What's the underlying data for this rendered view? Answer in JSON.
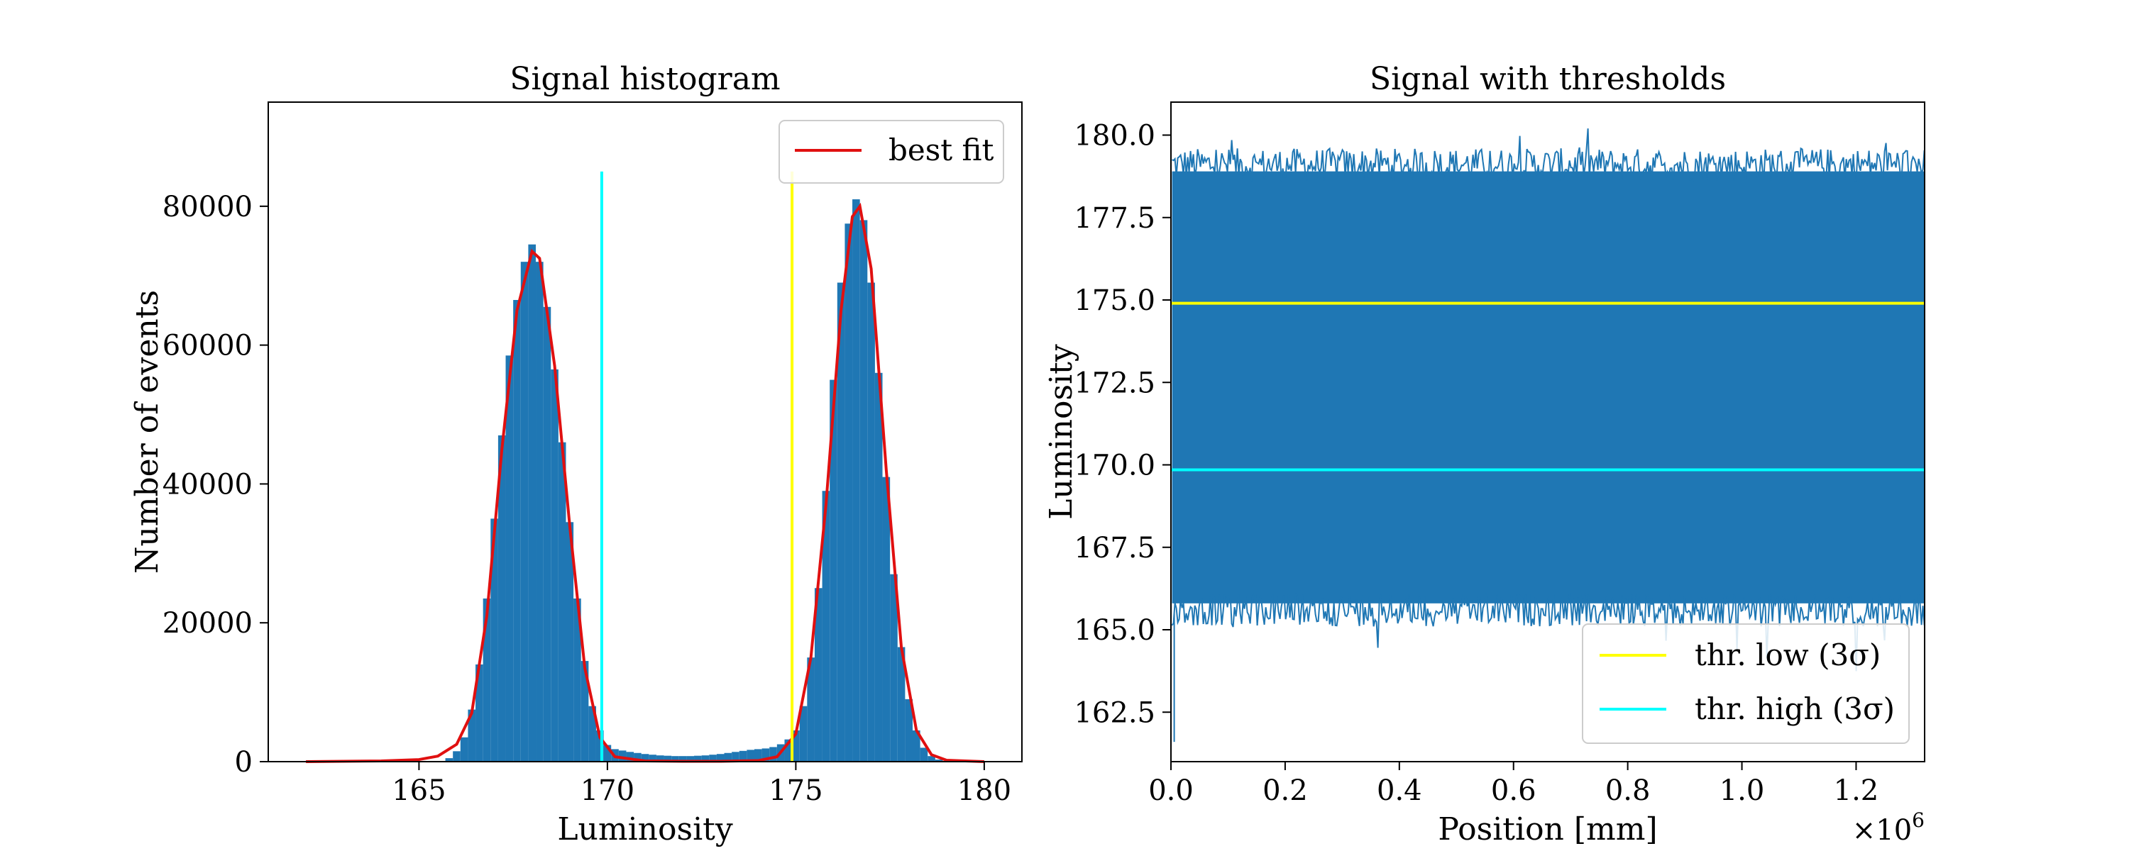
{
  "colors": {
    "hist": "#1f77b4",
    "fit": "#e01010",
    "yellow": "#ffff00",
    "cyan": "#00ffff",
    "signal": "#1f77b4"
  },
  "chart_data": [
    {
      "id": "histogram",
      "type": "bar",
      "title": "Signal histogram",
      "xlabel": "Luminosity",
      "ylabel": "Number of events",
      "xlim": [
        161,
        181
      ],
      "ylim": [
        0,
        95000
      ],
      "xticks": [
        165,
        170,
        175,
        180
      ],
      "yticks": [
        0,
        20000,
        40000,
        60000,
        80000
      ],
      "grid": false,
      "legend_position": "upper-right",
      "bins": [
        [
          165.8,
          500
        ],
        [
          166.0,
          1500
        ],
        [
          166.2,
          3500
        ],
        [
          166.4,
          7500
        ],
        [
          166.6,
          14000
        ],
        [
          166.8,
          23500
        ],
        [
          167.0,
          35000
        ],
        [
          167.2,
          47000
        ],
        [
          167.4,
          58500
        ],
        [
          167.6,
          66500
        ],
        [
          167.8,
          72000
        ],
        [
          168.0,
          74500
        ],
        [
          168.2,
          72000
        ],
        [
          168.4,
          65500
        ],
        [
          168.6,
          56500
        ],
        [
          168.8,
          46000
        ],
        [
          169.0,
          34500
        ],
        [
          169.2,
          23500
        ],
        [
          169.4,
          14500
        ],
        [
          169.6,
          8000
        ],
        [
          169.8,
          4500
        ],
        [
          170.0,
          2400
        ],
        [
          170.2,
          1800
        ],
        [
          170.4,
          1600
        ],
        [
          170.6,
          1400
        ],
        [
          170.8,
          1250
        ],
        [
          171.0,
          1100
        ],
        [
          171.2,
          1000
        ],
        [
          171.4,
          900
        ],
        [
          171.6,
          850
        ],
        [
          171.8,
          800
        ],
        [
          172.0,
          800
        ],
        [
          172.2,
          800
        ],
        [
          172.4,
          850
        ],
        [
          172.6,
          900
        ],
        [
          172.8,
          1000
        ],
        [
          173.0,
          1100
        ],
        [
          173.2,
          1250
        ],
        [
          173.4,
          1400
        ],
        [
          173.6,
          1550
        ],
        [
          173.8,
          1700
        ],
        [
          174.0,
          1800
        ],
        [
          174.2,
          1900
        ],
        [
          174.4,
          2100
        ],
        [
          174.6,
          2500
        ],
        [
          174.8,
          3200
        ],
        [
          175.0,
          4500
        ],
        [
          175.2,
          8000
        ],
        [
          175.4,
          15000
        ],
        [
          175.6,
          25000
        ],
        [
          175.8,
          39000
        ],
        [
          176.0,
          55000
        ],
        [
          176.2,
          69000
        ],
        [
          176.4,
          77500
        ],
        [
          176.6,
          81000
        ],
        [
          176.8,
          78000
        ],
        [
          177.0,
          69000
        ],
        [
          177.2,
          56000
        ],
        [
          177.4,
          41000
        ],
        [
          177.6,
          27000
        ],
        [
          177.8,
          16500
        ],
        [
          178.0,
          9000
        ],
        [
          178.2,
          4500
        ],
        [
          178.4,
          2000
        ],
        [
          178.6,
          800
        ],
        [
          178.8,
          300
        ]
      ],
      "series": [
        {
          "name": "best fit",
          "color": "#e01010",
          "x": [
            162,
            164,
            165,
            165.5,
            166,
            166.4,
            166.8,
            167.2,
            167.6,
            168.0,
            168.2,
            168.6,
            169.0,
            169.4,
            169.8,
            170.2,
            171,
            172,
            173,
            174,
            174.5,
            175.0,
            175.4,
            175.8,
            176.2,
            176.5,
            176.7,
            177.0,
            177.4,
            177.8,
            178.2,
            178.6,
            179.0,
            180.0
          ],
          "y": [
            0,
            100,
            300,
            800,
            2500,
            7000,
            21000,
            45000,
            65000,
            73500,
            72500,
            57000,
            34000,
            13500,
            3500,
            700,
            100,
            50,
            50,
            150,
            700,
            4000,
            15000,
            37000,
            65000,
            78500,
            80000,
            71000,
            42000,
            16500,
            4500,
            1000,
            200,
            0
          ]
        }
      ],
      "vlines": [
        {
          "x": 169.85,
          "y_top": 85000,
          "color": "#00ffff"
        },
        {
          "x": 174.9,
          "y_top": 85000,
          "color": "#ffff00"
        }
      ]
    },
    {
      "id": "signal",
      "type": "line",
      "title": "Signal with thresholds",
      "xlabel": "Position [mm]",
      "ylabel": "Luminosity",
      "x_scale_label": "×10",
      "x_scale_exponent": "6",
      "xlim": [
        0,
        1.32
      ],
      "ylim": [
        161,
        181
      ],
      "xticks": [
        "0.0",
        "0.2",
        "0.4",
        "0.6",
        "0.8",
        "1.0",
        "1.2"
      ],
      "yticks": [
        "162.5",
        "165.0",
        "167.5",
        "170.0",
        "172.5",
        "175.0",
        "177.5",
        "180.0"
      ],
      "grid": false,
      "legend_position": "lower-right",
      "signal_band": {
        "low": 165.5,
        "high": 179.2,
        "min_spike": 161.6,
        "max_spike": 180.2
      },
      "series": [
        {
          "name": "thr. low (3σ)",
          "color": "#ffff00",
          "y": 174.9
        },
        {
          "name": "thr. high (3σ)",
          "color": "#00ffff",
          "y": 169.85
        }
      ]
    }
  ]
}
